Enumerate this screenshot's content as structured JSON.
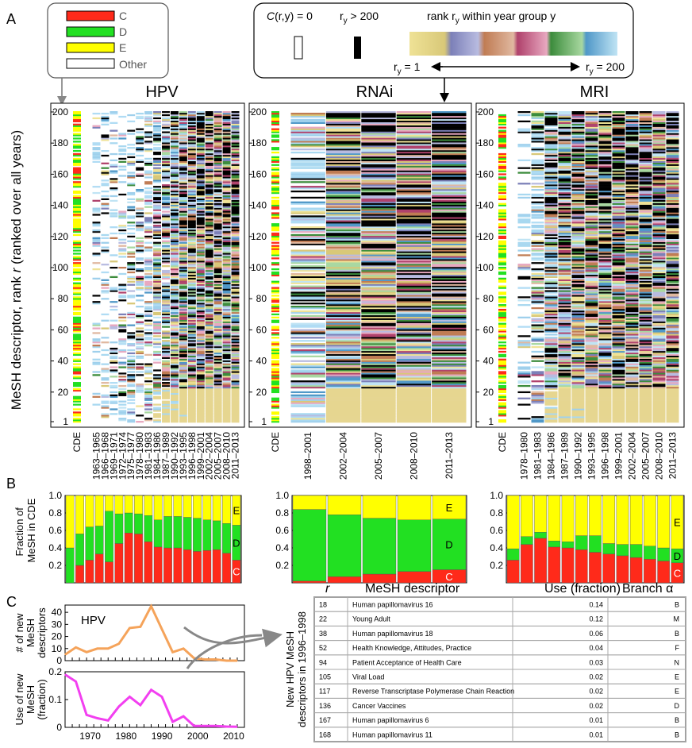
{
  "panel_letters": {
    "a": "A",
    "b": "B",
    "c": "C"
  },
  "legend_cde": {
    "items": [
      {
        "label": "C",
        "color": "#ff2a1a"
      },
      {
        "label": "D",
        "color": "#22e022"
      },
      {
        "label": "E",
        "color": "#ffff00"
      },
      {
        "label": "Other",
        "color": "#ffffff"
      }
    ]
  },
  "legend_rank": {
    "zero_label_fn": "C",
    "zero_label_rest": "(r,y) = 0",
    "over_label": "r",
    "over_sub": "y",
    "over_rest": " > 200",
    "rank_label": "rank r",
    "rank_sub": "y",
    "rank_rest": " within year group y",
    "left_end": "r",
    "left_end_sub": "y",
    "left_end_rest": " = 1",
    "right_end": "r",
    "right_end_sub": "y",
    "right_end_rest": " = 200",
    "gradient_colors": [
      "#e8d98a",
      "#9a9ac8",
      "#c99a78",
      "#c97a9a",
      "#7aa87a",
      "#8cc0e0"
    ]
  },
  "y_axis_label_pre": "MeSH descriptor, rank ",
  "y_axis_label_var": "r",
  "y_axis_label_post": " (ranked over all years)",
  "b_y_axis_label": [
    "Fraction of",
    "MeSH in CDE"
  ],
  "chart_data": [
    {
      "type": "heatmap",
      "title": "HPV",
      "yticks": [
        1,
        20,
        40,
        60,
        80,
        100,
        120,
        140,
        160,
        180,
        200
      ],
      "columns": [
        "CDE",
        "1963–1965",
        "1966–1968",
        "1969–1971",
        "1972–1974",
        "1975–1977",
        "1978–1980",
        "1981–1983",
        "1984–1986",
        "1987–1989",
        "1990–1992",
        "1993–1995",
        "1996–1998",
        "1999–2001",
        "2002–2004",
        "2005–2007",
        "2008–2010",
        "2011–2013"
      ],
      "fill_fraction": [
        1,
        0.15,
        0.18,
        0.2,
        0.22,
        0.25,
        0.3,
        0.45,
        0.62,
        0.75,
        0.85,
        0.92,
        0.96,
        0.98,
        1,
        1,
        1,
        1
      ]
    },
    {
      "type": "heatmap",
      "title": "RNAi",
      "yticks": [
        1,
        20,
        40,
        60,
        80,
        100,
        120,
        140,
        160,
        180,
        200
      ],
      "columns": [
        "CDE",
        "1998–2001",
        "2002–2004",
        "2005–2007",
        "2008–2010",
        "2011–2013"
      ],
      "fill_fraction": [
        1,
        0.55,
        0.95,
        1,
        1,
        1
      ]
    },
    {
      "type": "heatmap",
      "title": "MRI",
      "yticks": [
        1,
        20,
        40,
        60,
        80,
        100,
        120,
        140,
        160,
        180,
        200
      ],
      "columns": [
        "CDE",
        "1978–1980",
        "1981–1983",
        "1984–1986",
        "1987–1989",
        "1990–1992",
        "1993–1995",
        "1996–1998",
        "1999–2001",
        "2002–2004",
        "2005–2007",
        "2008–2010",
        "2011–2013"
      ],
      "fill_fraction": [
        1,
        0.15,
        0.5,
        0.8,
        0.9,
        0.95,
        0.97,
        1,
        1,
        1,
        1,
        1,
        1
      ]
    },
    {
      "type": "bar",
      "stacked": true,
      "yticks": [
        0.2,
        0.4,
        0.6,
        0.8,
        1.0
      ],
      "ylim": [
        0,
        1
      ],
      "stack_labels": [
        "C",
        "D",
        "E"
      ],
      "series": [
        {
          "name": "C",
          "color": "#ff2a1a",
          "values": [
            0.0,
            0.2,
            0.26,
            0.33,
            0.24,
            0.45,
            0.57,
            0.56,
            0.47,
            0.41,
            0.4,
            0.4,
            0.38,
            0.36,
            0.37,
            0.38,
            0.34,
            0.26
          ]
        },
        {
          "name": "D",
          "color": "#22e022",
          "values": [
            0.4,
            0.36,
            0.38,
            0.32,
            0.58,
            0.34,
            0.23,
            0.23,
            0.3,
            0.31,
            0.36,
            0.36,
            0.37,
            0.38,
            0.35,
            0.33,
            0.34,
            0.4
          ]
        },
        {
          "name": "E",
          "color": "#ffff00",
          "values": [
            0.6,
            0.44,
            0.36,
            0.35,
            0.18,
            0.21,
            0.2,
            0.21,
            0.23,
            0.28,
            0.24,
            0.24,
            0.25,
            0.26,
            0.28,
            0.29,
            0.32,
            0.34
          ]
        }
      ]
    },
    {
      "type": "bar",
      "stacked": true,
      "yticks": [
        0.2,
        0.4,
        0.6,
        0.8,
        1.0
      ],
      "ylim": [
        0,
        1
      ],
      "stack_labels": [
        "C",
        "D",
        "E"
      ],
      "series": [
        {
          "name": "C",
          "color": "#ff2a1a",
          "values": [
            0.02,
            0.07,
            0.1,
            0.13,
            0.15
          ]
        },
        {
          "name": "D",
          "color": "#22e022",
          "values": [
            0.82,
            0.71,
            0.64,
            0.59,
            0.58
          ]
        },
        {
          "name": "E",
          "color": "#ffff00",
          "values": [
            0.16,
            0.22,
            0.26,
            0.28,
            0.27
          ]
        }
      ]
    },
    {
      "type": "bar",
      "stacked": true,
      "yticks": [
        0.2,
        0.4,
        0.6,
        0.8,
        1.0
      ],
      "ylim": [
        0,
        1
      ],
      "stack_labels": [
        "C",
        "D",
        "E"
      ],
      "series": [
        {
          "name": "C",
          "color": "#ff2a1a",
          "values": [
            0.26,
            0.44,
            0.51,
            0.41,
            0.4,
            0.38,
            0.35,
            0.33,
            0.31,
            0.29,
            0.27,
            0.25,
            0.23
          ]
        },
        {
          "name": "D",
          "color": "#22e022",
          "values": [
            0.13,
            0.09,
            0.07,
            0.07,
            0.07,
            0.16,
            0.19,
            0.12,
            0.13,
            0.15,
            0.15,
            0.15,
            0.16
          ]
        },
        {
          "name": "E",
          "color": "#ffff00",
          "values": [
            0.61,
            0.47,
            0.42,
            0.52,
            0.53,
            0.46,
            0.46,
            0.55,
            0.56,
            0.56,
            0.58,
            0.6,
            0.61
          ]
        }
      ]
    },
    {
      "type": "line",
      "inset_label": "HPV",
      "ylabel": [
        "# of new",
        "MeSH",
        "descriptors"
      ],
      "color": "#f5a35a",
      "x": [
        1963,
        1966,
        1969,
        1972,
        1975,
        1978,
        1981,
        1984,
        1987,
        1990,
        1993,
        1996,
        1999,
        2002,
        2005,
        2008,
        2011
      ],
      "y": [
        5,
        11,
        7,
        10,
        10,
        14,
        27,
        28,
        45,
        26,
        7,
        10,
        2,
        1,
        1,
        0,
        0
      ],
      "yticks": [
        0,
        10,
        20,
        30,
        40
      ],
      "ylim": [
        0,
        46
      ],
      "xlim": [
        1963,
        2013
      ]
    },
    {
      "type": "line",
      "ylabel": [
        "Use of new",
        "MeSH",
        "(fraction)"
      ],
      "color": "#f23ff0",
      "x": [
        1963,
        1966,
        1969,
        1972,
        1975,
        1978,
        1981,
        1984,
        1987,
        1990,
        1993,
        1996,
        1999,
        2002,
        2005,
        2008,
        2011
      ],
      "y": [
        0.19,
        0.165,
        0.045,
        0.033,
        0.025,
        0.075,
        0.11,
        0.08,
        0.135,
        0.11,
        0.02,
        0.04,
        0.005,
        0.005,
        0.005,
        0.003,
        0.002
      ],
      "yticks": [
        0.0,
        0.1,
        0.2
      ],
      "xticks": [
        1970,
        1980,
        1990,
        2000,
        2010
      ],
      "ylim": [
        0,
        0.2
      ],
      "xlim": [
        1963,
        2013
      ]
    },
    {
      "type": "table",
      "side_label": [
        "New HPV MeSH",
        "descriptors in 1996–1998"
      ],
      "headers": {
        "rank": "r",
        "name": "MeSH descriptor",
        "use": "Use (fraction)",
        "branch": "Branch α"
      },
      "rows": [
        {
          "rank": "18",
          "name": "Human papillomavirus 16",
          "use": "0.14",
          "branch": "B"
        },
        {
          "rank": "22",
          "name": "Young Adult",
          "use": "0.12",
          "branch": "M"
        },
        {
          "rank": "38",
          "name": "Human papillomavirus 18",
          "use": "0.06",
          "branch": "B"
        },
        {
          "rank": "52",
          "name": "Health Knowledge, Attitudes, Practice",
          "use": "0.04",
          "branch": "F"
        },
        {
          "rank": "94",
          "name": "Patient Acceptance of Health Care",
          "use": "0.03",
          "branch": "N"
        },
        {
          "rank": "105",
          "name": "Viral Load",
          "use": "0.02",
          "branch": "E"
        },
        {
          "rank": "117",
          "name": "Reverse Transcriptase Polymerase Chain Reaction",
          "use": "0.02",
          "branch": "E"
        },
        {
          "rank": "136",
          "name": "Cancer Vaccines",
          "use": "0.02",
          "branch": "D"
        },
        {
          "rank": "167",
          "name": "Human papillomavirus 6",
          "use": "0.01",
          "branch": "B"
        },
        {
          "rank": "168",
          "name": "Human papillomavirus 11",
          "use": "0.01",
          "branch": "B"
        }
      ]
    }
  ]
}
